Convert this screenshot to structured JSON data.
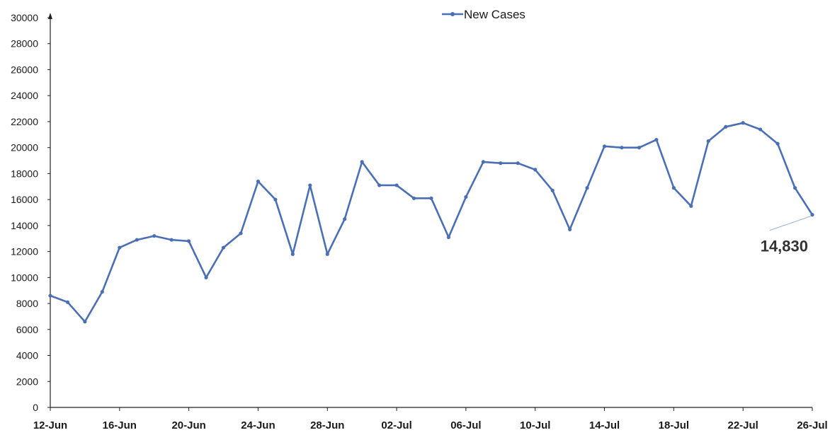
{
  "chart_data": {
    "type": "line",
    "y_ticks": [
      "0",
      "2000",
      "4000",
      "6000",
      "8000",
      "10000",
      "12000",
      "14000",
      "16000",
      "18000",
      "20000",
      "22000",
      "24000",
      "26000",
      "28000",
      "30000"
    ],
    "x_tick_labels": [
      "12-Jun",
      "16-Jun",
      "20-Jun",
      "24-Jun",
      "28-Jun",
      "02-Jul",
      "06-Jul",
      "10-Jul",
      "14-Jul",
      "18-Jul",
      "22-Jul",
      "26-Jul"
    ],
    "ylim": [
      0,
      30000
    ],
    "grid": false,
    "legend_position": "top-center",
    "series": [
      {
        "name": "New Cases",
        "color": "#4a6fb5",
        "x": [
          "12-Jun",
          "13-Jun",
          "14-Jun",
          "15-Jun",
          "16-Jun",
          "17-Jun",
          "18-Jun",
          "19-Jun",
          "20-Jun",
          "21-Jun",
          "22-Jun",
          "23-Jun",
          "24-Jun",
          "25-Jun",
          "26-Jun",
          "27-Jun",
          "28-Jun",
          "29-Jun",
          "30-Jun",
          "01-Jul",
          "02-Jul",
          "03-Jul",
          "04-Jul",
          "05-Jul",
          "06-Jul",
          "07-Jul",
          "08-Jul",
          "09-Jul",
          "10-Jul",
          "11-Jul",
          "12-Jul",
          "13-Jul",
          "14-Jul",
          "15-Jul",
          "16-Jul",
          "17-Jul",
          "18-Jul",
          "19-Jul",
          "20-Jul",
          "21-Jul",
          "22-Jul",
          "23-Jul",
          "24-Jul",
          "25-Jul",
          "26-Jul"
        ],
        "values": [
          8600,
          8100,
          6600,
          8900,
          12300,
          12900,
          13200,
          12900,
          12800,
          10000,
          12300,
          13400,
          17400,
          16000,
          11800,
          17100,
          11800,
          14500,
          18900,
          17100,
          17100,
          16100,
          16100,
          13100,
          16200,
          18900,
          18800,
          18800,
          18300,
          16700,
          13700,
          16900,
          20100,
          20000,
          20000,
          20600,
          16900,
          15500,
          20500,
          21600,
          21900,
          21400,
          20300,
          16900,
          14830
        ]
      }
    ],
    "annotations": [
      {
        "text": "14,830",
        "point_index": 44
      }
    ]
  }
}
